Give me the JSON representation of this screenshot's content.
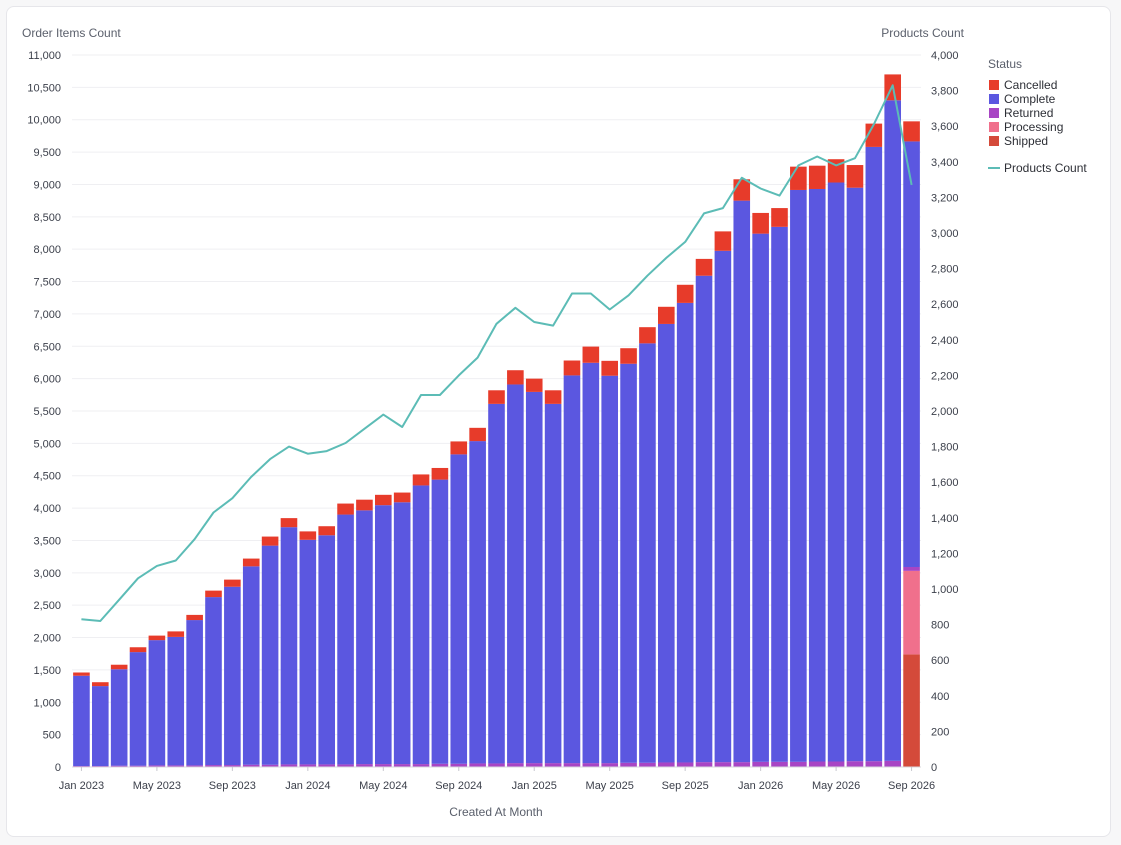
{
  "chart_data": {
    "type": "bar",
    "stacked": true,
    "xlabel": "Created At Month",
    "ylabel_left": "Order Items Count",
    "ylabel_right": "Products Count",
    "ylim_left": [
      0,
      11000
    ],
    "ylim_right": [
      0,
      4000
    ],
    "yticks_left": [
      "0",
      "500",
      "1,000",
      "1,500",
      "2,000",
      "2,500",
      "3,000",
      "3,500",
      "4,000",
      "4,500",
      "5,000",
      "5,500",
      "6,000",
      "6,500",
      "7,000",
      "7,500",
      "8,000",
      "8,500",
      "9,000",
      "9,500",
      "10,000",
      "10,500",
      "11,000"
    ],
    "yticks_right": [
      "0",
      "200",
      "400",
      "600",
      "800",
      "1,000",
      "1,200",
      "1,400",
      "1,600",
      "1,800",
      "2,000",
      "2,200",
      "2,400",
      "2,600",
      "2,800",
      "3,000",
      "3,200",
      "3,400",
      "3,600",
      "3,800",
      "4,000"
    ],
    "x_tick_labels": [
      {
        "index": 0,
        "label": "Jan 2023"
      },
      {
        "index": 4,
        "label": "May 2023"
      },
      {
        "index": 8,
        "label": "Sep 2023"
      },
      {
        "index": 12,
        "label": "Jan 2024"
      },
      {
        "index": 16,
        "label": "May 2024"
      },
      {
        "index": 20,
        "label": "Sep 2024"
      },
      {
        "index": 24,
        "label": "Jan 2025"
      },
      {
        "index": 28,
        "label": "May 2025"
      },
      {
        "index": 32,
        "label": "Sep 2025"
      },
      {
        "index": 36,
        "label": "Jan 2026"
      },
      {
        "index": 40,
        "label": "May 2026"
      },
      {
        "index": 44,
        "label": "Sep 2026"
      }
    ],
    "grid": true,
    "legend_title": "Status",
    "legend_position": "right",
    "series": [
      {
        "name": "Shipped",
        "color": "#d44a3a",
        "values": [
          0,
          0,
          0,
          0,
          0,
          0,
          0,
          0,
          0,
          0,
          0,
          0,
          0,
          0,
          0,
          0,
          0,
          0,
          0,
          0,
          0,
          0,
          0,
          0,
          0,
          0,
          0,
          0,
          0,
          0,
          0,
          0,
          0,
          0,
          0,
          0,
          0,
          0,
          0,
          0,
          0,
          0,
          0,
          0,
          1740
        ]
      },
      {
        "name": "Processing",
        "color": "#f0708c",
        "values": [
          0,
          0,
          0,
          0,
          0,
          0,
          0,
          0,
          0,
          0,
          0,
          0,
          0,
          0,
          0,
          0,
          0,
          0,
          0,
          0,
          0,
          0,
          0,
          0,
          0,
          0,
          0,
          0,
          0,
          0,
          0,
          0,
          0,
          0,
          0,
          0,
          0,
          0,
          0,
          0,
          0,
          0,
          0,
          0,
          1290
        ]
      },
      {
        "name": "Returned",
        "color": "#a845c4",
        "values": [
          15,
          15,
          20,
          20,
          25,
          25,
          25,
          30,
          30,
          35,
          35,
          40,
          40,
          40,
          40,
          45,
          45,
          45,
          45,
          50,
          50,
          55,
          55,
          60,
          60,
          60,
          60,
          60,
          60,
          65,
          65,
          70,
          70,
          75,
          75,
          75,
          80,
          80,
          80,
          85,
          85,
          90,
          90,
          95,
          60
        ]
      },
      {
        "name": "Complete",
        "color": "#5b57e0",
        "values": [
          1395,
          1235,
          1490,
          1755,
          1935,
          1985,
          2245,
          2595,
          2755,
          3065,
          3385,
          3665,
          3470,
          3540,
          3860,
          3920,
          4000,
          4045,
          4305,
          4390,
          4780,
          4980,
          5555,
          5850,
          5735,
          5550,
          5990,
          6185,
          5985,
          6165,
          6480,
          6775,
          7100,
          7515,
          7900,
          8675,
          8160,
          8265,
          8835,
          8845,
          8945,
          8860,
          9490,
          10205,
          6575
        ]
      },
      {
        "name": "Cancelled",
        "color": "#e73b2a",
        "values": [
          50,
          60,
          70,
          75,
          70,
          85,
          80,
          100,
          110,
          120,
          140,
          140,
          130,
          140,
          170,
          165,
          160,
          150,
          170,
          180,
          200,
          205,
          210,
          220,
          205,
          210,
          230,
          250,
          230,
          240,
          250,
          265,
          280,
          260,
          300,
          330,
          320,
          290,
          360,
          360,
          360,
          350,
          360,
          400,
          310
        ]
      }
    ],
    "line_series": {
      "name": "Products Count",
      "color": "#5cbcb6",
      "axis": "right",
      "values": [
        830,
        820,
        940,
        1060,
        1130,
        1160,
        1280,
        1430,
        1510,
        1630,
        1730,
        1800,
        1760,
        1775,
        1820,
        1900,
        1980,
        1910,
        2090,
        2090,
        2200,
        2300,
        2490,
        2580,
        2500,
        2480,
        2660,
        2660,
        2570,
        2650,
        2760,
        2860,
        2950,
        3110,
        3140,
        3310,
        3250,
        3210,
        3380,
        3430,
        3380,
        3420,
        3610,
        3830,
        3270
      ]
    }
  }
}
